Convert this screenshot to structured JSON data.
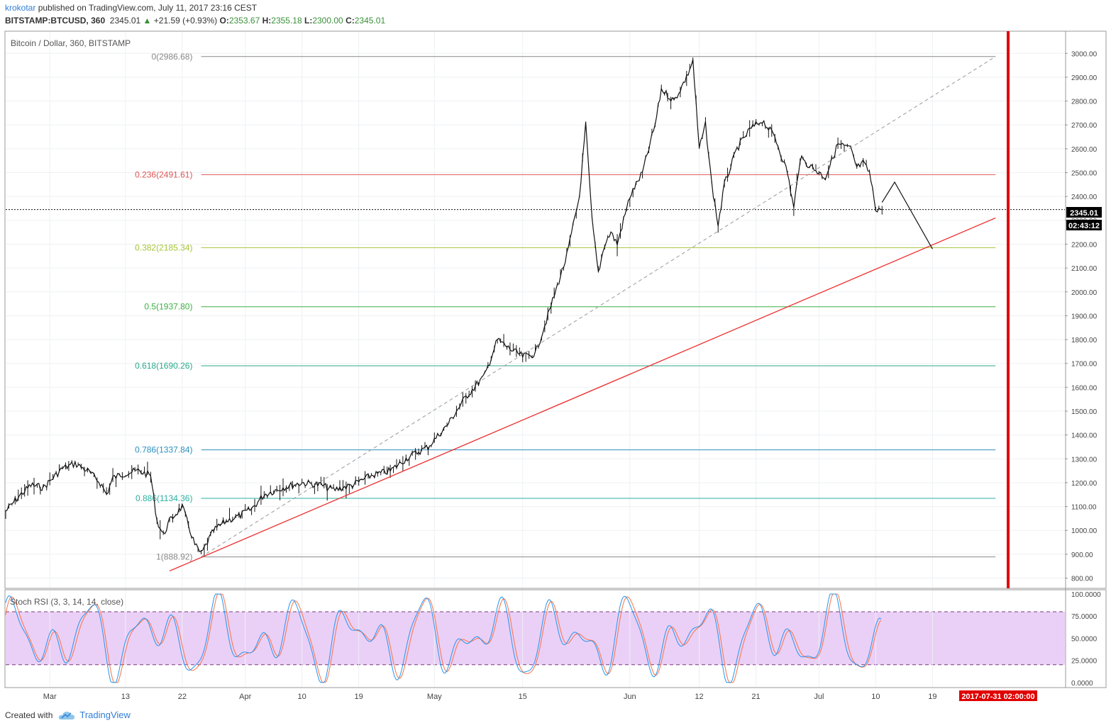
{
  "header": {
    "author": "krokotar",
    "published": "published on TradingView.com, July 11, 2017 23:16 CEST",
    "symbol": "BITSTAMP:BTCUSD, 360",
    "last": "2345.01",
    "change_arrow": "▲",
    "change": "+21.59 (+0.93%)",
    "o_label": "O:",
    "o_value": "2353.67",
    "h_label": "H:",
    "h_value": "2355.18",
    "l_label": "L:",
    "l_value": "2300.00",
    "c_label": "C:",
    "c_value": "2345.01"
  },
  "footer": {
    "created_with": "Created with",
    "brand": "TradingView"
  },
  "colors": {
    "fib_0": "#888888",
    "fib_236": "#e05555",
    "fib_382": "#a4c639",
    "fib_5": "#3cb043",
    "fib_618": "#29a98b",
    "fib_786": "#2b8fbf",
    "fib_886": "#2bb0a0",
    "fib_1": "#888888",
    "trend": "#ee2b2b",
    "vline": "#e00000",
    "stoch_k": "#2196f3",
    "stoch_d": "#ff7043",
    "band": "#e6c8f5",
    "price_label_bg": "#000000"
  },
  "chart_data": {
    "type": "candlestick",
    "title": "Bitcoin / Dollar, 360, BITSTAMP",
    "ylim": [
      760,
      3090
    ],
    "yticks": [
      800,
      900,
      1000,
      1100,
      1200,
      1300,
      1400,
      1500,
      1600,
      1700,
      1800,
      1900,
      2000,
      2100,
      2200,
      2300,
      2400,
      2500,
      2600,
      2700,
      2800,
      2900,
      3000
    ],
    "ytick_labels": [
      "800.00",
      "900.00",
      "1000.00",
      "1100.00",
      "1200.00",
      "1300.00",
      "1400.00",
      "1500.00",
      "1600.00",
      "1700.00",
      "1800.00",
      "1900.00",
      "2000.00",
      "2100.00",
      "2200.00",
      "2300.00",
      "2400.00",
      "2500.00",
      "2600.00",
      "2700.00",
      "2800.00",
      "2900.00",
      "3000.00"
    ],
    "xlim": [
      "2017-02-22",
      "2017-08-09"
    ],
    "xticks": [
      {
        "date": "2017-03-01",
        "label": "Mar"
      },
      {
        "date": "2017-03-13",
        "label": "13"
      },
      {
        "date": "2017-03-22",
        "label": "22"
      },
      {
        "date": "2017-04-01",
        "label": "Apr"
      },
      {
        "date": "2017-04-10",
        "label": "10"
      },
      {
        "date": "2017-04-19",
        "label": "19"
      },
      {
        "date": "2017-05-01",
        "label": "May"
      },
      {
        "date": "2017-05-15",
        "label": "15"
      },
      {
        "date": "2017-06-01",
        "label": "Jun"
      },
      {
        "date": "2017-06-12",
        "label": "12"
      },
      {
        "date": "2017-06-21",
        "label": "21"
      },
      {
        "date": "2017-07-01",
        "label": "Jul"
      },
      {
        "date": "2017-07-10",
        "label": "10"
      },
      {
        "date": "2017-07-19",
        "label": "19"
      }
    ],
    "price_path": [
      [
        "2017-02-22",
        1080
      ],
      [
        "2017-02-24",
        1140
      ],
      [
        "2017-02-26",
        1190
      ],
      [
        "2017-02-28",
        1180
      ],
      [
        "2017-03-03",
        1260
      ],
      [
        "2017-03-05",
        1280
      ],
      [
        "2017-03-07",
        1250
      ],
      [
        "2017-03-09",
        1200
      ],
      [
        "2017-03-10",
        1150
      ],
      [
        "2017-03-11",
        1220
      ],
      [
        "2017-03-13",
        1240
      ],
      [
        "2017-03-15",
        1250
      ],
      [
        "2017-03-17",
        1230
      ],
      [
        "2017-03-18",
        1040
      ],
      [
        "2017-03-19",
        980
      ],
      [
        "2017-03-20",
        1040
      ],
      [
        "2017-03-22",
        1100
      ],
      [
        "2017-03-24",
        940
      ],
      [
        "2017-03-25",
        900
      ],
      [
        "2017-03-27",
        1000
      ],
      [
        "2017-03-29",
        1040
      ],
      [
        "2017-03-31",
        1060
      ],
      [
        "2017-04-02",
        1090
      ],
      [
        "2017-04-04",
        1150
      ],
      [
        "2017-04-07",
        1180
      ],
      [
        "2017-04-10",
        1200
      ],
      [
        "2017-04-13",
        1190
      ],
      [
        "2017-04-15",
        1170
      ],
      [
        "2017-04-18",
        1190
      ],
      [
        "2017-04-21",
        1230
      ],
      [
        "2017-04-24",
        1250
      ],
      [
        "2017-04-27",
        1310
      ],
      [
        "2017-04-30",
        1350
      ],
      [
        "2017-05-03",
        1440
      ],
      [
        "2017-05-06",
        1560
      ],
      [
        "2017-05-09",
        1650
      ],
      [
        "2017-05-11",
        1800
      ],
      [
        "2017-05-13",
        1760
      ],
      [
        "2017-05-15",
        1730
      ],
      [
        "2017-05-17",
        1740
      ],
      [
        "2017-05-19",
        1900
      ],
      [
        "2017-05-22",
        2150
      ],
      [
        "2017-05-24",
        2400
      ],
      [
        "2017-05-25",
        2700
      ],
      [
        "2017-05-26",
        2300
      ],
      [
        "2017-05-27",
        2080
      ],
      [
        "2017-05-28",
        2200
      ],
      [
        "2017-05-29",
        2250
      ],
      [
        "2017-05-30",
        2200
      ],
      [
        "2017-06-01",
        2400
      ],
      [
        "2017-06-03",
        2500
      ],
      [
        "2017-06-05",
        2700
      ],
      [
        "2017-06-06",
        2850
      ],
      [
        "2017-06-08",
        2800
      ],
      [
        "2017-06-10",
        2900
      ],
      [
        "2017-06-11",
        2970
      ],
      [
        "2017-06-12",
        2600
      ],
      [
        "2017-06-13",
        2700
      ],
      [
        "2017-06-14",
        2450
      ],
      [
        "2017-06-15",
        2280
      ],
      [
        "2017-06-16",
        2450
      ],
      [
        "2017-06-18",
        2600
      ],
      [
        "2017-06-20",
        2680
      ],
      [
        "2017-06-22",
        2720
      ],
      [
        "2017-06-24",
        2650
      ],
      [
        "2017-06-26",
        2500
      ],
      [
        "2017-06-27",
        2350
      ],
      [
        "2017-06-28",
        2560
      ],
      [
        "2017-06-30",
        2520
      ],
      [
        "2017-07-02",
        2480
      ],
      [
        "2017-07-04",
        2620
      ],
      [
        "2017-07-06",
        2600
      ],
      [
        "2017-07-07",
        2520
      ],
      [
        "2017-07-08",
        2540
      ],
      [
        "2017-07-09",
        2500
      ],
      [
        "2017-07-10",
        2350
      ],
      [
        "2017-07-11",
        2345.01
      ]
    ],
    "fib_retracement": [
      {
        "level": "0",
        "price": 2986.68,
        "label": "0(2986.68)"
      },
      {
        "level": "0.236",
        "price": 2491.61,
        "label": "0.236(2491.61)"
      },
      {
        "level": "0.382",
        "price": 2185.34,
        "label": "0.382(2185.34)"
      },
      {
        "level": "0.5",
        "price": 1937.8,
        "label": "0.5(1937.80)"
      },
      {
        "level": "0.618",
        "price": 1690.26,
        "label": "0.618(1690.26)"
      },
      {
        "level": "0.786",
        "price": 1337.84,
        "label": "0.786(1337.84)"
      },
      {
        "level": "0.886",
        "price": 1134.36,
        "label": "0.886(1134.36)"
      },
      {
        "level": "1",
        "price": 888.92,
        "label": "1(888.92)"
      }
    ],
    "trendline": {
      "from": [
        "2017-03-20",
        830
      ],
      "to": [
        "2017-07-29",
        2310
      ]
    },
    "fib_diagonal": {
      "from": [
        "2017-03-25",
        888.92
      ],
      "to": [
        "2017-07-29",
        2986.68
      ]
    },
    "projection": [
      [
        "2017-07-11",
        2375
      ],
      [
        "2017-07-13",
        2460
      ],
      [
        "2017-07-19",
        2180
      ]
    ],
    "vertical_marker_date": "2017-07-31",
    "last_price": 2345.01,
    "last_price_label": "2345.01",
    "countdown_label": "02:43:12",
    "x_marker_label": "2017-07-31 02:00:00",
    "indicator": {
      "title": "Stoch RSI (3, 3, 14, 14, close)",
      "ylim": [
        -5,
        104
      ],
      "yticks": [
        0,
        25,
        50,
        75,
        100
      ],
      "ytick_labels": [
        "0.0000",
        "25.0000",
        "50.0000",
        "75.0000",
        "100.0000"
      ],
      "band": [
        20,
        80
      ]
    }
  }
}
